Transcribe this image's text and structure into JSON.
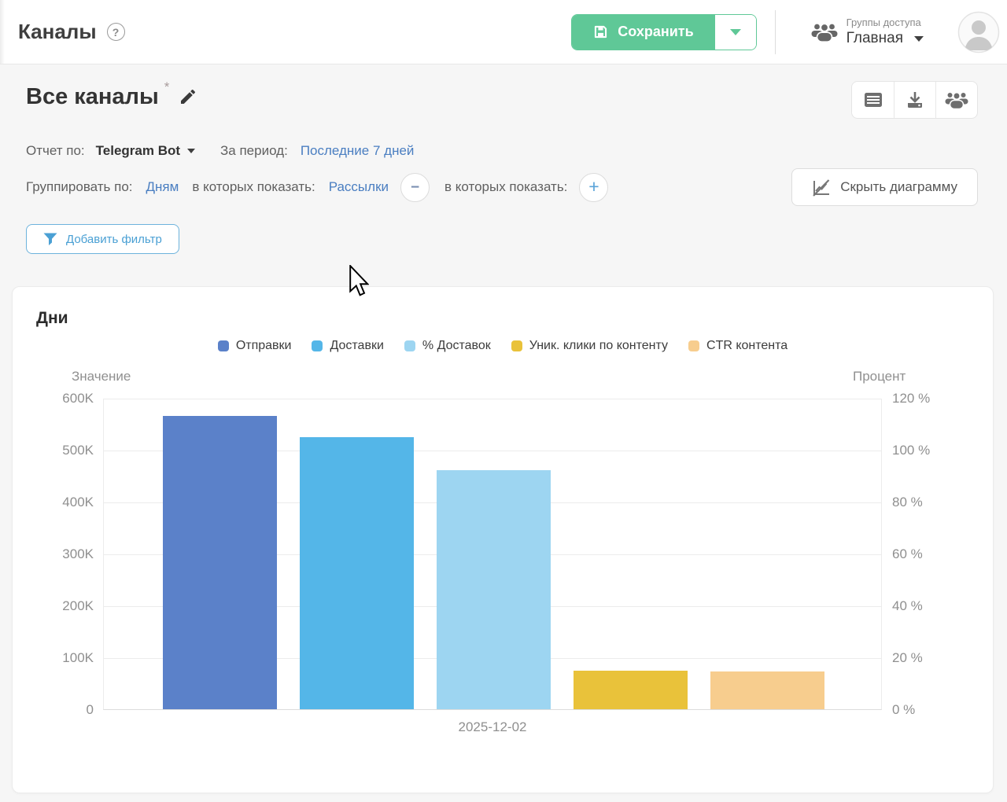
{
  "colors": {
    "accent_green": "#5fc897",
    "link_blue": "#4a7ec1",
    "filter_blue": "#4aa0d4"
  },
  "header": {
    "title": "Каналы",
    "help_glyph": "?",
    "save_button_label": "Сохранить",
    "access_group_label": "Группы доступа",
    "access_group_value": "Главная"
  },
  "report": {
    "title": "Все каналы",
    "required_mark": "*",
    "report_by_label": "Отчет по:",
    "report_by_value": "Telegram Bot",
    "period_label": "За период:",
    "period_value": "Последние 7 дней",
    "group_by_label": "Группировать по:",
    "group_by_value": "Дням",
    "show_in_label": "в которых показать:",
    "show_in_value": "Рассылки",
    "show_in_label_2": "в которых показать:",
    "minus_glyph": "−",
    "plus_glyph": "+",
    "hide_chart_label": "Скрыть диаграмму",
    "add_filter_label": "Добавить фильтр"
  },
  "chart_data": {
    "type": "bar",
    "title": "Дни",
    "categories": [
      "2025-12-02"
    ],
    "series": [
      {
        "name": "Отправки",
        "axis": "left",
        "color": "#5b81c9",
        "values": [
          565000
        ]
      },
      {
        "name": "Доставки",
        "axis": "left",
        "color": "#54b6e8",
        "values": [
          524000
        ]
      },
      {
        "name": "% Доставок",
        "axis": "right",
        "color": "#9dd5f1",
        "values": [
          92.2
        ]
      },
      {
        "name": "Уник. клики по контенту",
        "axis": "left",
        "color": "#e9c23a",
        "values": [
          74000
        ]
      },
      {
        "name": "CTR контента",
        "axis": "right",
        "color": "#f7cd8e",
        "values": [
          14.4
        ]
      }
    ],
    "left_axis": {
      "title": "Значение",
      "min": 0,
      "max": 600000,
      "ticks": [
        "600K",
        "500K",
        "400K",
        "300K",
        "200K",
        "100K",
        "0"
      ]
    },
    "right_axis": {
      "title": "Процент",
      "min": 0,
      "max": 120,
      "ticks": [
        "120 %",
        "100 %",
        "80 %",
        "60 %",
        "40 %",
        "20 %",
        "0 %"
      ]
    },
    "grid": true,
    "legend_position": "top"
  }
}
